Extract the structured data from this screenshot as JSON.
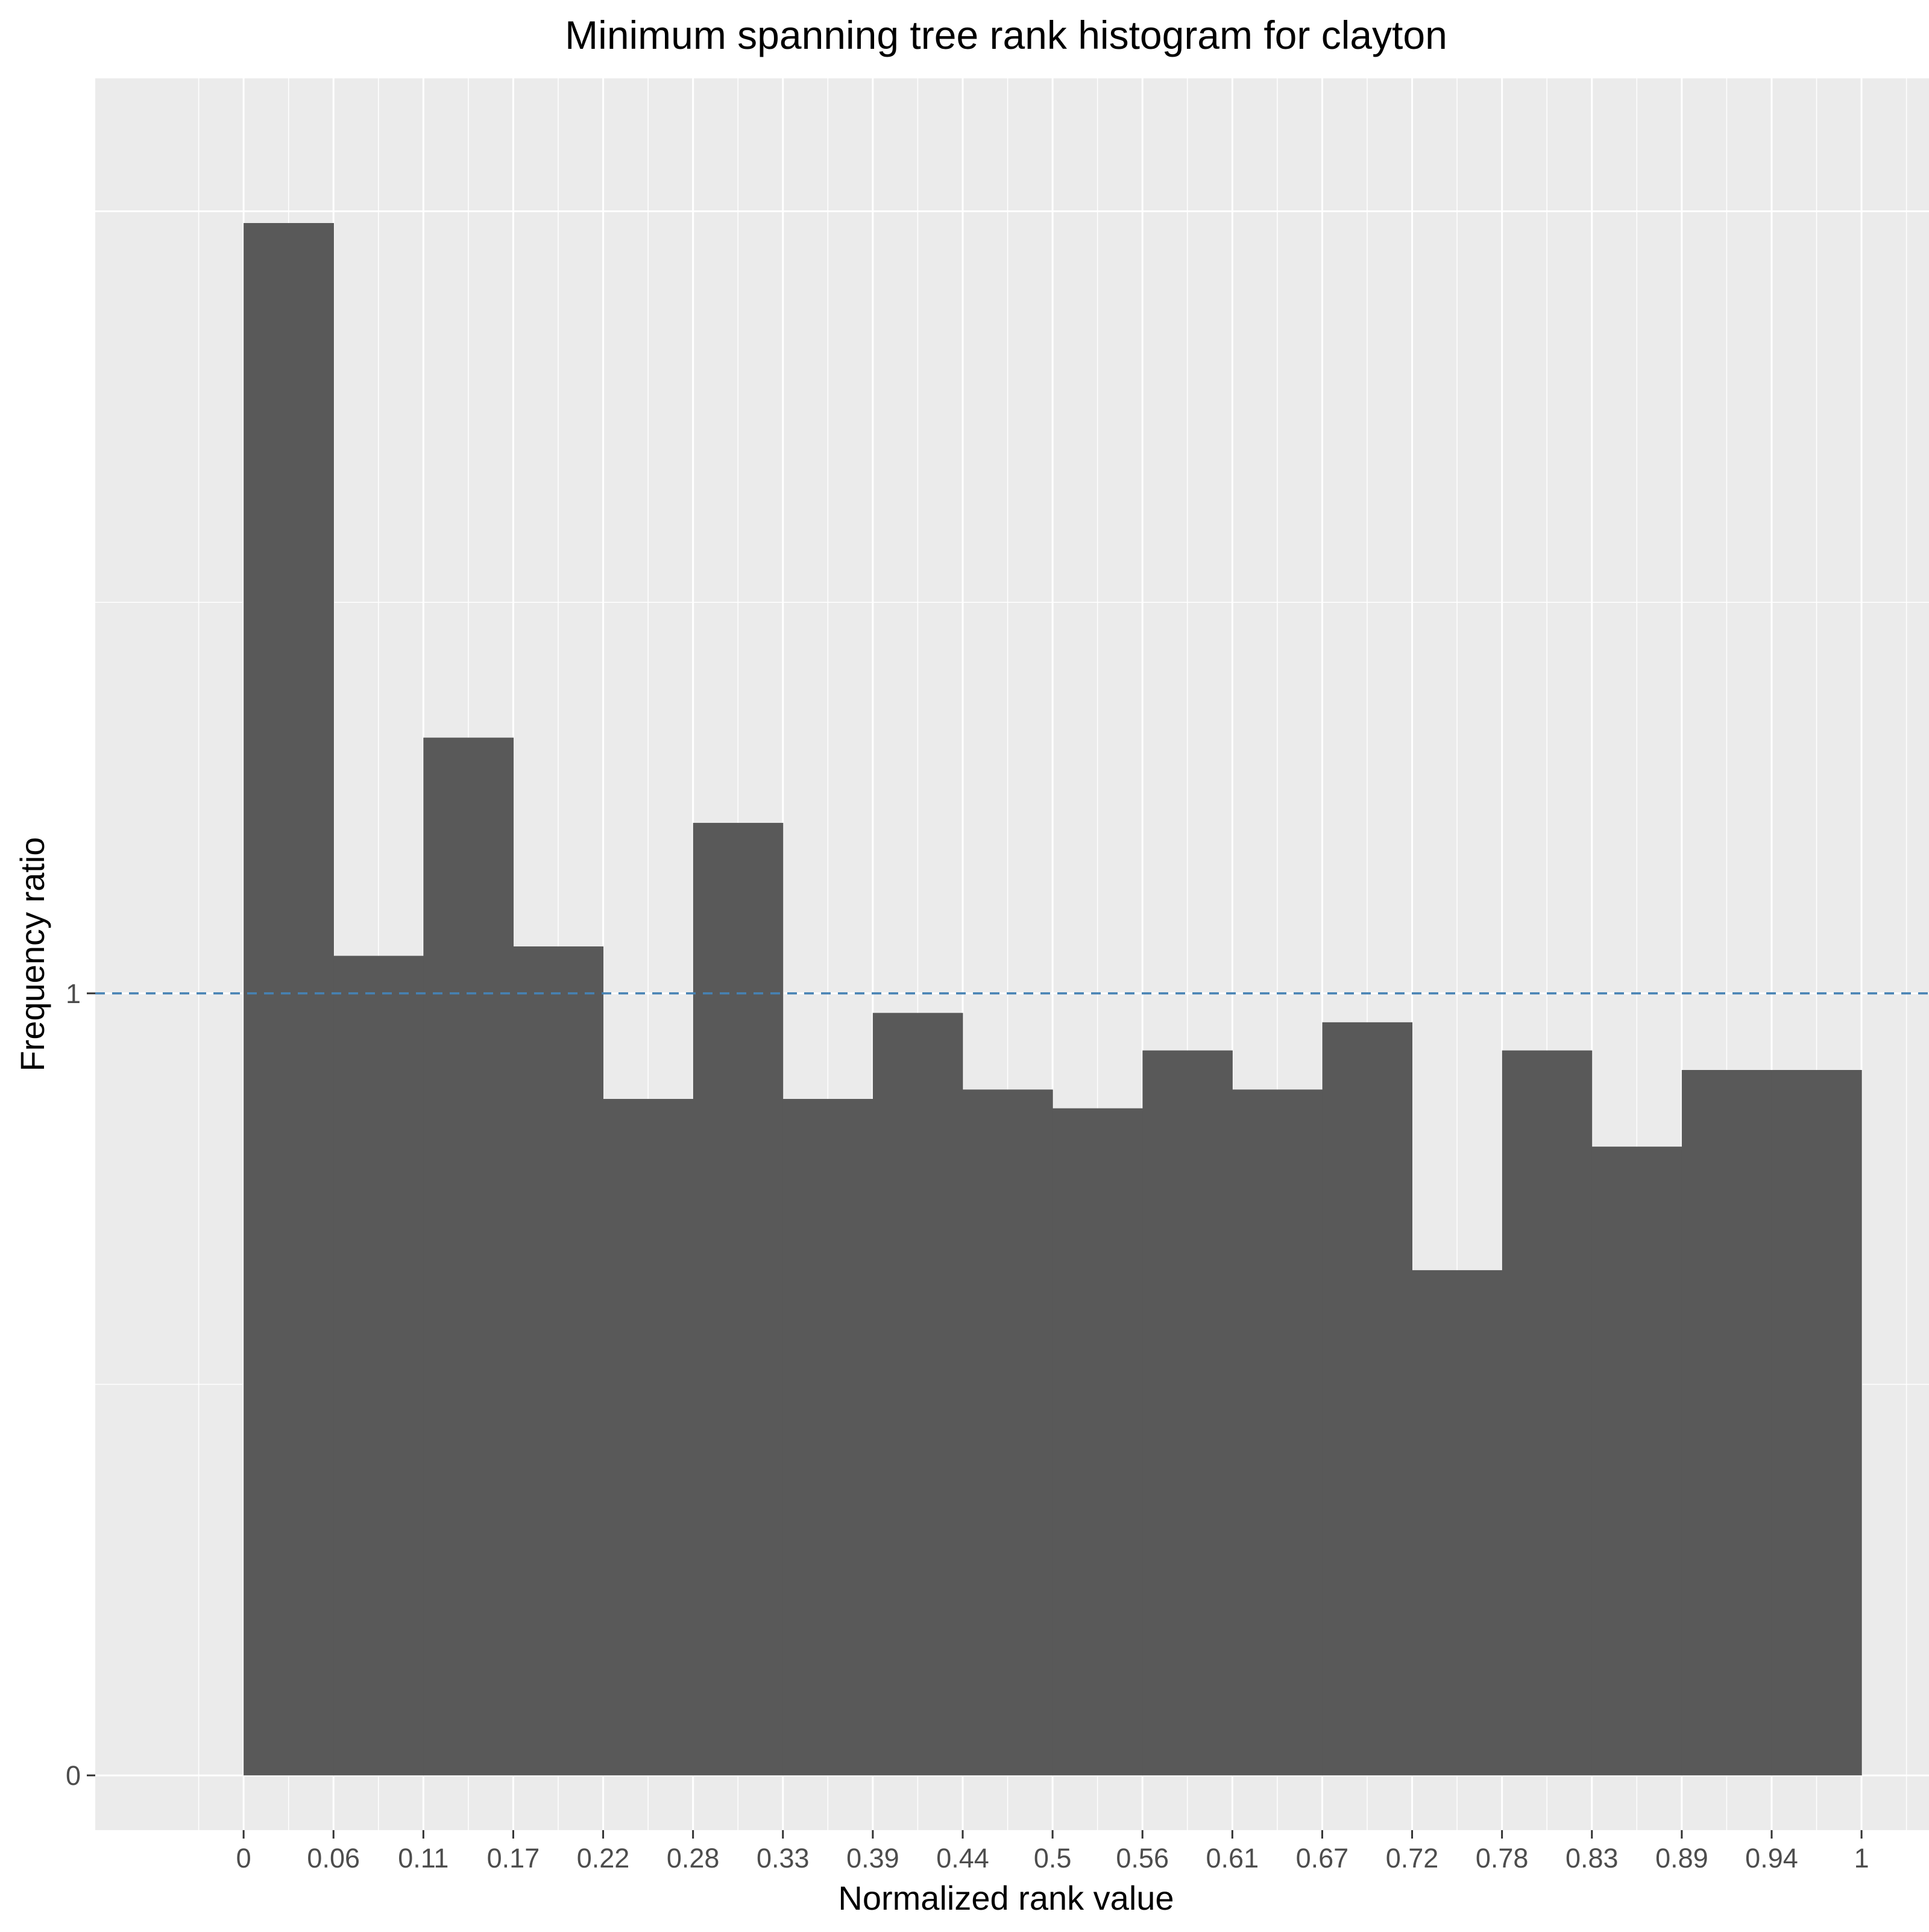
{
  "chart_data": {
    "type": "bar",
    "title": "Minimum spanning tree rank histogram for clayton",
    "xlabel": "Normalized rank value",
    "ylabel": "Frequency ratio",
    "x_tick_labels": [
      "0",
      "0.06",
      "0.11",
      "0.17",
      "0.22",
      "0.28",
      "0.33",
      "0.39",
      "0.44",
      "0.5",
      "0.56",
      "0.61",
      "0.67",
      "0.72",
      "0.78",
      "0.83",
      "0.89",
      "0.94",
      "1"
    ],
    "y_tick_labels": [
      "0",
      "1"
    ],
    "y_ticks": [
      0,
      1
    ],
    "ylim": [
      -0.07,
      2.17
    ],
    "xlim": [
      -0.0917,
      1.0417
    ],
    "bin_edges": [
      0,
      0.0556,
      0.1111,
      0.1667,
      0.2222,
      0.2778,
      0.3333,
      0.3889,
      0.4444,
      0.5,
      0.5556,
      0.6111,
      0.6667,
      0.7222,
      0.7778,
      0.8333,
      0.8889,
      0.9444,
      1.0
    ],
    "values": [
      1.985,
      1.048,
      1.327,
      1.06,
      0.865,
      1.218,
      0.865,
      0.975,
      0.877,
      0.853,
      0.927,
      0.877,
      0.963,
      0.646,
      0.927,
      0.804,
      0.902,
      0.902
    ],
    "reference_line": {
      "y": 1,
      "style": "dashed",
      "color": "#4682b4"
    },
    "bar_color": "#595959",
    "panel_background": "#ebebeb",
    "grid": true
  }
}
